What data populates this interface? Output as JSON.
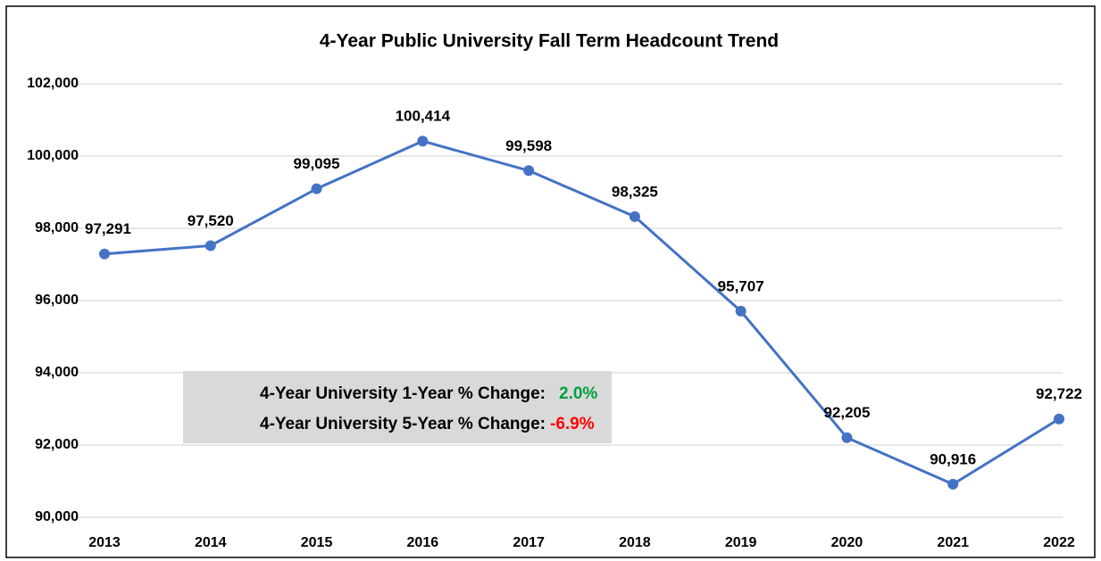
{
  "chart_data": {
    "type": "line",
    "title": "4-Year Public University Fall Term Headcount Trend",
    "categories": [
      "2013",
      "2014",
      "2015",
      "2016",
      "2017",
      "2018",
      "2019",
      "2020",
      "2021",
      "2022"
    ],
    "series": [
      {
        "name": "4-Year Public University Fall Term Headcount",
        "color": "#4472c4",
        "values": [
          97291,
          97520,
          99095,
          100414,
          99598,
          98325,
          95707,
          92205,
          90916,
          92722
        ],
        "value_labels": [
          "97,291",
          "97,520",
          "99,095",
          "100,414",
          "99,598",
          "98,325",
          "95,707",
          "92,205",
          "90,916",
          "92,722"
        ]
      }
    ],
    "ylim": [
      90000,
      102000
    ],
    "yticks": [
      {
        "value": 90000,
        "label": "90,000"
      },
      {
        "value": 92000,
        "label": "92,000"
      },
      {
        "value": 94000,
        "label": "94,000"
      },
      {
        "value": 96000,
        "label": "96,000"
      },
      {
        "value": 98000,
        "label": "98,000"
      },
      {
        "value": 100000,
        "label": "100,000"
      },
      {
        "value": 102000,
        "label": "102,000"
      }
    ],
    "grid": true,
    "annotations": [
      {
        "text": "4-Year University 1-Year % Change:",
        "value": "2.0%",
        "color": "#00a040"
      },
      {
        "text": "4-Year University 5-Year % Change:",
        "value": "-6.9%",
        "color": "#ff0000"
      }
    ]
  }
}
